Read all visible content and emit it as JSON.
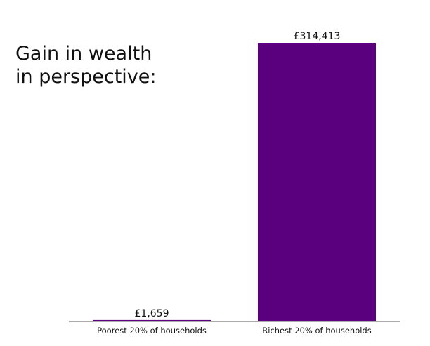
{
  "title_lines": [
    "Gain in wealth",
    "in perspective:"
  ],
  "chart_data": {
    "type": "bar",
    "title": "Gain in wealth in perspective:",
    "categories": [
      "Poorest 20% of households",
      "Richest 20% of households"
    ],
    "values": [
      1659,
      314413
    ],
    "value_labels": [
      "£1,659",
      "£314,413"
    ],
    "bar_color": "#5a007f",
    "xlabel": "",
    "ylabel": "",
    "ylim": [
      0,
      314413
    ],
    "grid": false,
    "legend": "none"
  }
}
